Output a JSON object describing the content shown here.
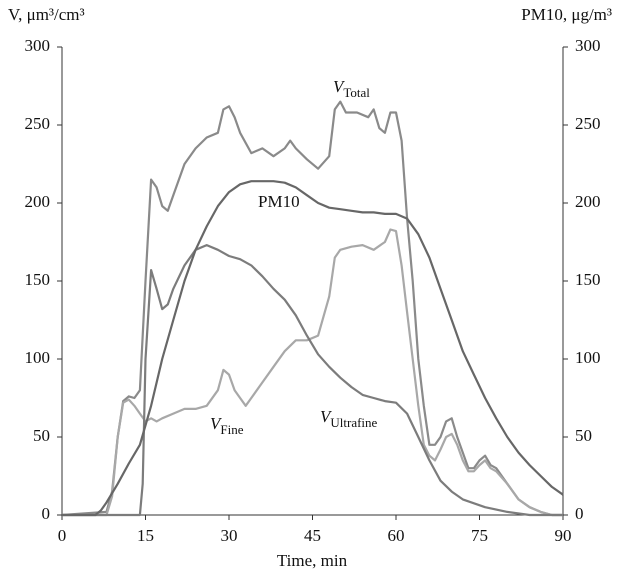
{
  "chart_data": {
    "type": "line",
    "y_label": "V, μm³/cm³",
    "y2_label": "PM10, μg/m³",
    "x_label": "Time, min",
    "xlim": [
      0,
      90
    ],
    "xticks": [
      0,
      15,
      30,
      45,
      60,
      75,
      90
    ],
    "ylim": [
      0,
      300
    ],
    "yticks": [
      0,
      50,
      100,
      150,
      200,
      250,
      300
    ],
    "y2lim": [
      0,
      300
    ],
    "y2ticks": [
      0,
      50,
      100,
      150,
      200,
      250,
      300
    ],
    "series": [
      {
        "name": "V",
        "subscript": "Total",
        "color": "#8a8a8a",
        "x": [
          0,
          8,
          9,
          10,
          11,
          12,
          13,
          14,
          15,
          16,
          17,
          18,
          19,
          20,
          22,
          24,
          26,
          28,
          29,
          30,
          31,
          32,
          34,
          36,
          38,
          40,
          41,
          42,
          44,
          46,
          48,
          49,
          50,
          51,
          53,
          55,
          56,
          57,
          58,
          59,
          60,
          61,
          62,
          63,
          64,
          65,
          66,
          67,
          68,
          69,
          70,
          71,
          72,
          73,
          74,
          75,
          76,
          77,
          78,
          80,
          82,
          84,
          86,
          88,
          90
        ],
        "values": [
          0,
          2,
          15,
          50,
          73,
          76,
          75,
          80,
          150,
          215,
          210,
          198,
          195,
          205,
          225,
          235,
          242,
          245,
          260,
          262,
          255,
          245,
          232,
          235,
          230,
          235,
          240,
          235,
          228,
          222,
          230,
          260,
          265,
          258,
          258,
          255,
          260,
          248,
          245,
          258,
          258,
          240,
          190,
          150,
          100,
          70,
          45,
          45,
          50,
          60,
          62,
          50,
          40,
          30,
          30,
          35,
          38,
          32,
          30,
          20,
          10,
          5,
          2,
          0,
          0
        ]
      },
      {
        "name": "V",
        "subscript": "Fine",
        "color": "#a8a8a8",
        "x": [
          0,
          8,
          9,
          10,
          11,
          12,
          13,
          14,
          15,
          16,
          17,
          18,
          20,
          22,
          24,
          26,
          28,
          29,
          30,
          31,
          32,
          33,
          34,
          36,
          38,
          40,
          42,
          44,
          46,
          48,
          49,
          50,
          52,
          54,
          56,
          58,
          59,
          60,
          61,
          62,
          63,
          64,
          65,
          66,
          67,
          68,
          69,
          70,
          71,
          72,
          73,
          74,
          75,
          76,
          77,
          78,
          80,
          82,
          84,
          86,
          88,
          90
        ],
        "values": [
          0,
          0,
          12,
          50,
          72,
          74,
          70,
          65,
          60,
          62,
          60,
          62,
          65,
          68,
          68,
          70,
          80,
          93,
          90,
          80,
          75,
          70,
          75,
          85,
          95,
          105,
          112,
          112,
          115,
          140,
          165,
          170,
          172,
          173,
          170,
          175,
          183,
          182,
          160,
          130,
          100,
          70,
          45,
          38,
          35,
          42,
          50,
          52,
          45,
          35,
          28,
          28,
          32,
          35,
          30,
          28,
          20,
          10,
          5,
          2,
          0,
          0
        ]
      },
      {
        "name": "V",
        "subscript": "Ultrafine",
        "color": "#7c7c7c",
        "x": [
          0,
          14,
          14.5,
          15,
          16,
          17,
          18,
          19,
          20,
          22,
          24,
          26,
          28,
          30,
          32,
          34,
          36,
          38,
          40,
          42,
          44,
          46,
          48,
          50,
          52,
          54,
          56,
          58,
          60,
          62,
          64,
          66,
          68,
          70,
          72,
          76,
          80,
          84,
          90
        ],
        "values": [
          0,
          0,
          20,
          100,
          157,
          145,
          132,
          135,
          145,
          160,
          170,
          173,
          170,
          166,
          164,
          160,
          153,
          145,
          138,
          128,
          115,
          103,
          95,
          88,
          82,
          77,
          75,
          73,
          72,
          65,
          50,
          35,
          22,
          15,
          10,
          5,
          2,
          0,
          0
        ]
      },
      {
        "name": "PM10",
        "axis": "y2",
        "color": "#676767",
        "x": [
          0,
          6,
          7,
          8,
          10,
          12,
          14,
          16,
          18,
          20,
          22,
          24,
          26,
          28,
          30,
          32,
          34,
          36,
          38,
          40,
          42,
          44,
          46,
          48,
          50,
          52,
          54,
          56,
          58,
          60,
          62,
          64,
          66,
          68,
          70,
          72,
          74,
          76,
          78,
          80,
          82,
          84,
          86,
          88,
          90
        ],
        "values": [
          0,
          0,
          3,
          8,
          20,
          33,
          45,
          70,
          100,
          125,
          150,
          170,
          185,
          198,
          207,
          212,
          214,
          214,
          214,
          213,
          210,
          205,
          200,
          197,
          196,
          195,
          194,
          194,
          193,
          193,
          190,
          180,
          165,
          145,
          125,
          105,
          90,
          75,
          62,
          50,
          40,
          32,
          25,
          18,
          13
        ]
      }
    ]
  }
}
